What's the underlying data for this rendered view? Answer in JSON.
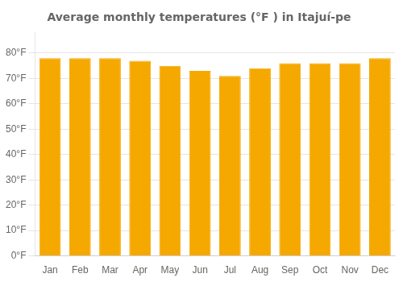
{
  "chart_data": {
    "type": "bar",
    "title": "Average monthly temperatures (°F ) in Itajuí-pe",
    "categories": [
      "Jan",
      "Feb",
      "Mar",
      "Apr",
      "May",
      "Jun",
      "Jul",
      "Aug",
      "Sep",
      "Oct",
      "Nov",
      "Dec"
    ],
    "values": [
      78,
      78,
      78,
      77,
      75,
      73,
      71,
      74,
      76,
      76,
      76,
      78
    ],
    "color": "#F5A800",
    "ylim": [
      0,
      88
    ],
    "yticks": [
      {
        "value": 0,
        "label": "0°F"
      },
      {
        "value": 10,
        "label": "10°F"
      },
      {
        "value": 20,
        "label": "20°F"
      },
      {
        "value": 30,
        "label": "30°F"
      },
      {
        "value": 40,
        "label": "40°F"
      },
      {
        "value": 50,
        "label": "50°F"
      },
      {
        "value": 60,
        "label": "60°F"
      },
      {
        "value": 70,
        "label": "70°F"
      },
      {
        "value": 80,
        "label": "80°F"
      }
    ],
    "grid": true
  }
}
